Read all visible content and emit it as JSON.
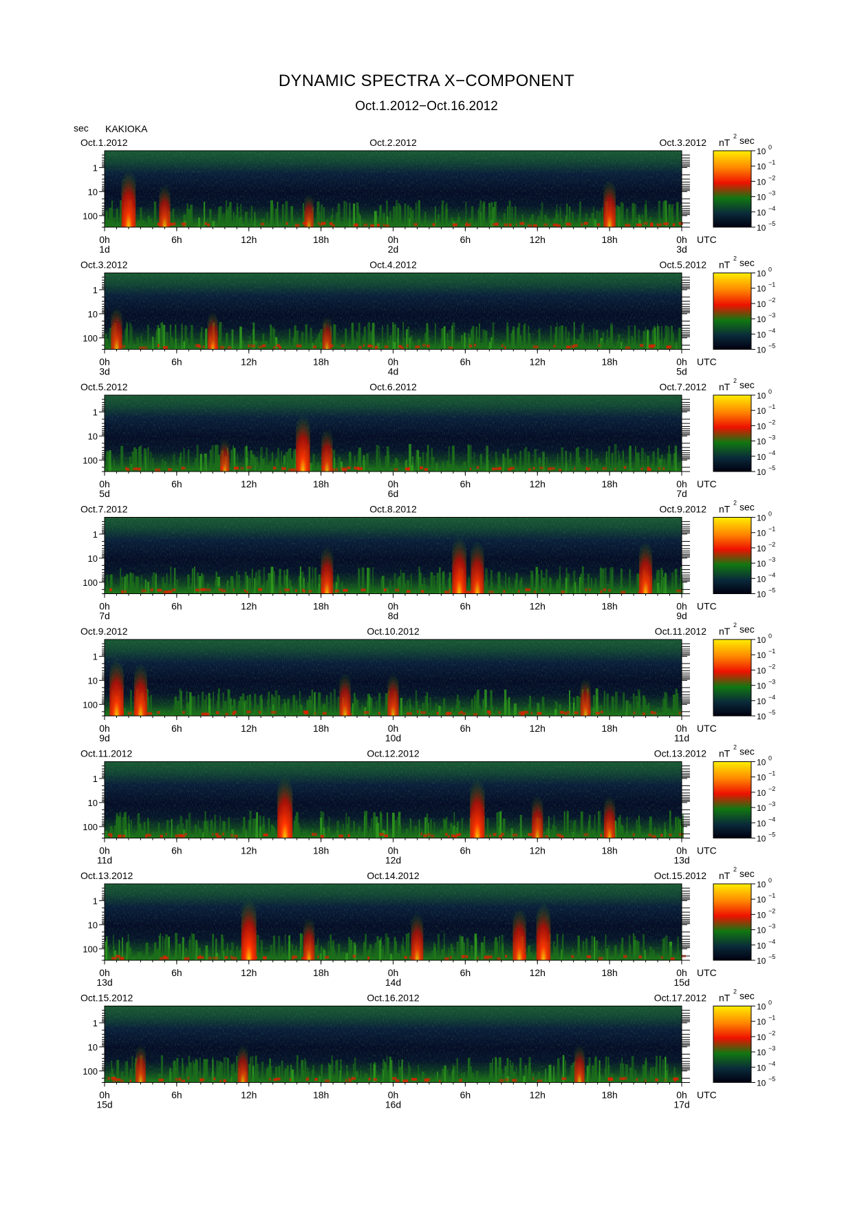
{
  "header": {
    "title": "DYNAMIC SPECTRA X−COMPONENT",
    "subtitle": "Oct.1.2012−Oct.16.2012",
    "y_unit": "sec",
    "station": "KAKIOKA"
  },
  "colorbar": {
    "unit": "nT",
    "unit_sup": "2",
    "unit_suffix": "sec",
    "tick_labels": [
      "10",
      "10",
      "10",
      "10",
      "10",
      "10"
    ],
    "tick_exponents": [
      "0",
      "−1",
      "−2",
      "−3",
      "−4",
      "−5"
    ],
    "colors": [
      "#ffee00",
      "#ff8800",
      "#ee1100",
      "#117711",
      "#0a2a3a",
      "#000010"
    ]
  },
  "chart_data": {
    "type": "heatmap",
    "description_axes": {
      "x_tick_labels": [
        "0h",
        "6h",
        "12h",
        "18h",
        "0h",
        "6h",
        "12h",
        "18h",
        "0h"
      ],
      "x_unit_label": "UTC",
      "y_tick_labels": [
        "1",
        "10",
        "100"
      ],
      "y_scale": "log",
      "y_range_sec": [
        0.2,
        300
      ]
    },
    "panels": [
      {
        "left_date": "Oct.1.2012",
        "mid_date": "Oct.2.2012",
        "right_date": "Oct.3.2012",
        "day_labels": [
          "1d",
          "2d",
          "3d"
        ],
        "events": [
          {
            "hour": 2,
            "intensity": 0.9
          },
          {
            "hour": 5,
            "intensity": 0.6
          },
          {
            "hour": 17,
            "intensity": 0.4
          },
          {
            "hour": 42,
            "intensity": 0.7
          }
        ]
      },
      {
        "left_date": "Oct.3.2012",
        "mid_date": "Oct.4.2012",
        "right_date": "Oct.5.2012",
        "day_labels": [
          "3d",
          "4d",
          "5d"
        ],
        "events": [
          {
            "hour": 1,
            "intensity": 0.6
          },
          {
            "hour": 9,
            "intensity": 0.5
          },
          {
            "hour": 18.5,
            "intensity": 0.4
          }
        ]
      },
      {
        "left_date": "Oct.5.2012",
        "mid_date": "Oct.6.2012",
        "right_date": "Oct.7.2012",
        "day_labels": [
          "5d",
          "6d",
          "7d"
        ],
        "events": [
          {
            "hour": 16.5,
            "intensity": 0.9
          },
          {
            "hour": 18.5,
            "intensity": 0.6
          },
          {
            "hour": 10,
            "intensity": 0.4
          }
        ]
      },
      {
        "left_date": "Oct.7.2012",
        "mid_date": "Oct.8.2012",
        "right_date": "Oct.9.2012",
        "day_labels": [
          "7d",
          "8d",
          "9d"
        ],
        "events": [
          {
            "hour": 18.5,
            "intensity": 0.7
          },
          {
            "hour": 29.5,
            "intensity": 0.9
          },
          {
            "hour": 31,
            "intensity": 0.8
          },
          {
            "hour": 45,
            "intensity": 0.8
          }
        ]
      },
      {
        "left_date": "Oct.9.2012",
        "mid_date": "Oct.10.2012",
        "right_date": "Oct.11.2012",
        "day_labels": [
          "9d",
          "10d",
          "11d"
        ],
        "events": [
          {
            "hour": 1,
            "intensity": 0.9
          },
          {
            "hour": 3,
            "intensity": 0.8
          },
          {
            "hour": 20,
            "intensity": 0.6
          },
          {
            "hour": 24,
            "intensity": 0.6
          },
          {
            "hour": 40,
            "intensity": 0.5
          }
        ]
      },
      {
        "left_date": "Oct.11.2012",
        "mid_date": "Oct.12.2012",
        "right_date": "Oct.13.2012",
        "day_labels": [
          "11d",
          "12d",
          "13d"
        ],
        "events": [
          {
            "hour": 15,
            "intensity": 1.0
          },
          {
            "hour": 31,
            "intensity": 0.95
          },
          {
            "hour": 36,
            "intensity": 0.6
          },
          {
            "hour": 42,
            "intensity": 0.6
          }
        ]
      },
      {
        "left_date": "Oct.13.2012",
        "mid_date": "Oct.14.2012",
        "right_date": "Oct.15.2012",
        "day_labels": [
          "13d",
          "14d",
          "15d"
        ],
        "events": [
          {
            "hour": 12,
            "intensity": 1.0
          },
          {
            "hour": 17,
            "intensity": 0.6
          },
          {
            "hour": 26,
            "intensity": 0.7
          },
          {
            "hour": 34.5,
            "intensity": 0.8
          },
          {
            "hour": 36.5,
            "intensity": 0.9
          }
        ]
      },
      {
        "left_date": "Oct.15.2012",
        "mid_date": "Oct.16.2012",
        "right_date": "Oct.17.2012",
        "day_labels": [
          "15d",
          "16d",
          "17d"
        ],
        "events": [
          {
            "hour": 3,
            "intensity": 0.5
          },
          {
            "hour": 11.5,
            "intensity": 0.5
          },
          {
            "hour": 39.5,
            "intensity": 0.5
          }
        ]
      }
    ]
  }
}
